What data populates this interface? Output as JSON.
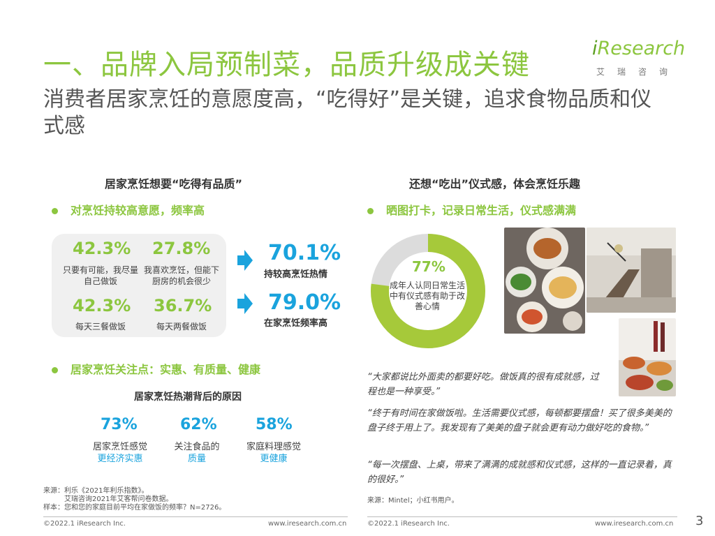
{
  "header": {
    "title": "一、品牌入局预制菜，品质升级成关键",
    "subtitle": "消费者居家烹饪的意愿度高，“吃得好”是关键，追求食物品质和仪式感",
    "logo": {
      "main_i": "i",
      "main_rest": "Research",
      "sub": "艾瑞咨询"
    }
  },
  "left": {
    "section_title": "居家烹饪想要“吃得有品质”",
    "bullet1": "对烹饪持较高意愿，频率高",
    "stats": [
      {
        "value": "42.3%",
        "caption": "只要有可能，我尽量自己做饭"
      },
      {
        "value": "27.8%",
        "caption": "我喜欢烹饪，但能下厨房的机会很少"
      },
      {
        "value": "42.3%",
        "caption": "每天三餐做饭"
      },
      {
        "value": "36.7%",
        "caption": "每天两餐做饭"
      }
    ],
    "summary": [
      {
        "value": "70.1%",
        "caption": "持较高烹饪热情"
      },
      {
        "value": "79.0%",
        "caption": "在家烹饪频率高"
      }
    ],
    "bullet2": "居家烹饪关注点：实惠、有质量、健康",
    "reasons_title": "居家烹饪热潮背后的原因",
    "reasons": [
      {
        "value": "73%",
        "line1": "居家烹饪感觉",
        "line2": "更经济实惠"
      },
      {
        "value": "62%",
        "line1": "关注食品的",
        "line2": "质量"
      },
      {
        "value": "58%",
        "line1": "家庭料理感觉",
        "line2": "更健康"
      }
    ],
    "source_lines": [
      "来源：利乐《2021年利乐指数》。",
      "艾瑞咨询2021年艾客帮问卷数据。",
      "样本：您和您的家庭目前平均在家做饭的频率？N=2726。"
    ],
    "footer_left": "©2022.1 iResearch Inc.",
    "footer_right": "www.iresearch.com.cn"
  },
  "right": {
    "section_title": "还想“吃出”仪式感，体会烹饪乐趣",
    "bullet": "晒图打卡，记录日常生活，仪式感满满",
    "donut": {
      "value_label": "77%",
      "value": 77,
      "caption": "成年人认同日常生活中有仪式感有助于改善心情",
      "color": "#a6c93a",
      "track_color": "#dcdcdc"
    },
    "quotes": [
      "“大家都说比外面卖的都要好吃。做饭真的很有成就感，过程也是一种享受。”",
      "“终于有时间在家做饭啦。生活需要仪式感，每顿都要摆盘！买了很多美美的盘子终于用上了。我发现有了美美的盘子就会更有动力做好吃的食物。”",
      "“每一次摆盘、上桌，带来了满满的成就感和仪式感，这样的一直记录着，真的很好。”"
    ],
    "source": "来源：Mintel；小红书用户。",
    "footer_left": "©2022.1 iResearch Inc.",
    "footer_right": "www.iresearch.com.cn"
  },
  "page_number": "3",
  "colors": {
    "accent_green": "#8cc63f",
    "accent_blue": "#1aa3dd"
  }
}
